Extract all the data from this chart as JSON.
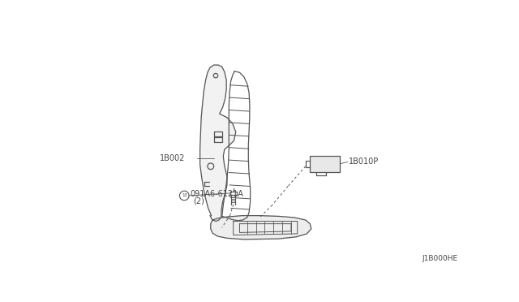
{
  "background_color": "#ffffff",
  "line_color": "#555555",
  "text_color": "#444444",
  "diagram_code": "J1B000HE",
  "labels": {
    "part1": "1B002",
    "part2": "1B010P",
    "part3": "091A6-6121A",
    "part3_sub": "(2)"
  }
}
